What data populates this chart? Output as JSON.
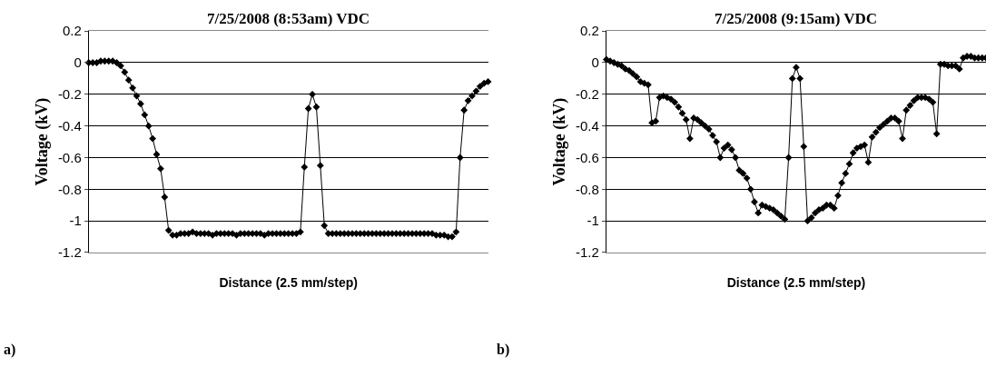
{
  "chart_data": [
    {
      "type": "line",
      "title": "7/25/2008 (8:53am) VDC",
      "xlabel": "Distance (2.5 mm/step)",
      "ylabel": "Voltage (kV)",
      "annotations": [
        "a)"
      ],
      "categories": [
        null,
        null,
        null,
        null,
        null,
        null,
        null,
        null,
        null,
        null,
        null,
        null,
        null,
        null,
        null,
        null,
        null,
        null,
        null,
        null,
        null,
        null,
        null,
        null,
        null,
        null,
        null,
        null,
        null,
        null,
        null,
        null,
        null,
        null,
        null,
        null,
        null,
        null,
        null,
        null,
        null,
        null,
        null,
        null,
        null,
        null,
        null,
        null,
        null,
        null,
        null,
        null,
        null,
        null,
        null,
        null,
        null,
        null,
        null,
        null,
        null,
        null,
        null,
        null,
        null,
        null,
        null,
        null,
        null,
        null,
        null,
        null,
        null,
        null,
        null,
        null,
        null,
        null,
        null,
        null,
        null,
        null,
        null,
        null,
        null,
        null,
        null,
        null,
        null,
        null,
        null,
        null,
        null,
        null,
        null,
        null,
        null,
        null,
        null,
        null,
        null
      ],
      "series": [
        {
          "color": "#000000",
          "values": [
            0,
            0,
            0,
            0.01,
            0.01,
            0.01,
            0.01,
            0,
            -0.02,
            -0.06,
            -0.11,
            -0.16,
            -0.21,
            -0.26,
            -0.33,
            -0.4,
            -0.48,
            -0.58,
            -0.67,
            -0.85,
            -1.06,
            -1.09,
            -1.09,
            -1.08,
            -1.08,
            -1.08,
            -1.07,
            -1.08,
            -1.08,
            -1.08,
            -1.08,
            -1.09,
            -1.08,
            -1.08,
            -1.08,
            -1.08,
            -1.08,
            -1.09,
            -1.08,
            -1.08,
            -1.08,
            -1.08,
            -1.08,
            -1.08,
            -1.09,
            -1.08,
            -1.08,
            -1.08,
            -1.08,
            -1.08,
            -1.08,
            -1.08,
            -1.08,
            -1.07,
            -0.66,
            -0.29,
            -0.2,
            -0.28,
            -0.65,
            -1.03,
            -1.08,
            -1.08,
            -1.08,
            -1.08,
            -1.08,
            -1.08,
            -1.08,
            -1.08,
            -1.08,
            -1.08,
            -1.08,
            -1.08,
            -1.08,
            -1.08,
            -1.08,
            -1.08,
            -1.08,
            -1.08,
            -1.08,
            -1.08,
            -1.08,
            -1.08,
            -1.08,
            -1.08,
            -1.08,
            -1.08,
            -1.08,
            -1.09,
            -1.09,
            -1.09,
            -1.1,
            -1.1,
            -1.07,
            -0.6,
            -0.3,
            -0.24,
            -0.21,
            -0.18,
            -0.15,
            -0.13,
            -0.12
          ]
        }
      ],
      "ylim": [
        -1.2,
        0.2
      ],
      "yticks": [
        -1.2,
        -1,
        -0.8,
        -0.6,
        -0.4,
        -0.2,
        0,
        0.2
      ],
      "grid": "y",
      "marker": "diamond",
      "tick_labels": "y"
    },
    {
      "type": "line",
      "title": "7/25/2008 (9:15am) VDC",
      "xlabel": "Distance (2.5 mm/step)",
      "ylabel": "Voltage (kV)",
      "annotations": [
        "b)"
      ],
      "categories": [
        null,
        null,
        null,
        null,
        null,
        null,
        null,
        null,
        null,
        null,
        null,
        null,
        null,
        null,
        null,
        null,
        null,
        null,
        null,
        null,
        null,
        null,
        null,
        null,
        null,
        null,
        null,
        null,
        null,
        null,
        null,
        null,
        null,
        null,
        null,
        null,
        null,
        null,
        null,
        null,
        null,
        null,
        null,
        null,
        null,
        null,
        null,
        null,
        null,
        null,
        null,
        null,
        null,
        null,
        null,
        null,
        null,
        null,
        null,
        null,
        null,
        null,
        null,
        null,
        null,
        null,
        null,
        null,
        null,
        null,
        null,
        null,
        null,
        null,
        null,
        null,
        null,
        null,
        null,
        null,
        null,
        null,
        null,
        null,
        null,
        null,
        null,
        null,
        null,
        null,
        null,
        null,
        null,
        null,
        null,
        null,
        null,
        null,
        null,
        null,
        null
      ],
      "series": [
        {
          "color": "#000000",
          "values": [
            0.02,
            0.01,
            0,
            -0.01,
            -0.02,
            -0.04,
            -0.05,
            -0.07,
            -0.09,
            -0.12,
            -0.13,
            -0.14,
            -0.38,
            -0.37,
            -0.22,
            -0.21,
            -0.22,
            -0.23,
            -0.25,
            -0.28,
            -0.32,
            -0.36,
            -0.48,
            -0.35,
            -0.36,
            -0.38,
            -0.4,
            -0.42,
            -0.46,
            -0.5,
            -0.6,
            -0.54,
            -0.52,
            -0.55,
            -0.6,
            -0.68,
            -0.7,
            -0.73,
            -0.8,
            -0.88,
            -0.95,
            -0.9,
            -0.91,
            -0.92,
            -0.93,
            -0.95,
            -0.97,
            -0.99,
            -0.6,
            -0.1,
            -0.03,
            -0.1,
            -0.53,
            -1,
            -0.98,
            -0.95,
            -0.93,
            -0.92,
            -0.9,
            -0.9,
            -0.92,
            -0.84,
            -0.76,
            -0.7,
            -0.64,
            -0.57,
            -0.54,
            -0.53,
            -0.52,
            -0.63,
            -0.47,
            -0.44,
            -0.41,
            -0.39,
            -0.37,
            -0.35,
            -0.35,
            -0.37,
            -0.48,
            -0.3,
            -0.27,
            -0.24,
            -0.22,
            -0.22,
            -0.22,
            -0.23,
            -0.25,
            -0.45,
            -0.01,
            -0.01,
            -0.02,
            -0.02,
            -0.02,
            -0.04,
            0.03,
            0.04,
            0.04,
            0.03,
            0.03,
            0.03,
            0.03
          ]
        }
      ],
      "ylim": [
        -1.2,
        0.2
      ],
      "yticks": [
        -1.2,
        -1,
        -0.8,
        -0.6,
        -0.4,
        -0.2,
        0,
        0.2
      ],
      "grid": "y",
      "marker": "diamond",
      "tick_labels": "y"
    }
  ]
}
